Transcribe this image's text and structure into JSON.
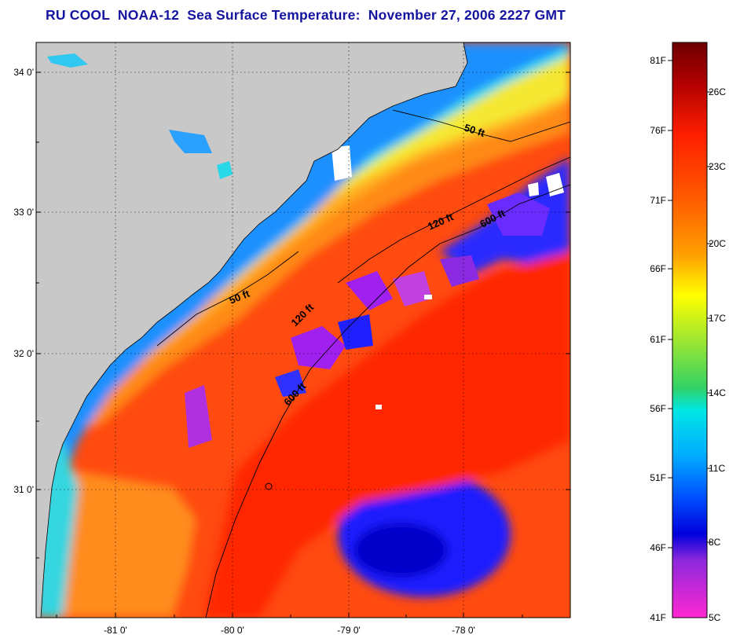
{
  "title": "RU COOL  NOAA-12  Sea Surface Temperature:  November 27, 2006 2227 GMT",
  "map": {
    "lat_labels": [
      "34 0'",
      "33 0'",
      "32 0'",
      "31 0'"
    ],
    "lon_labels": [
      "-81 0'",
      "-80 0'",
      "-79 0'",
      "-78 0'"
    ],
    "contours": [
      {
        "label": "50 ft"
      },
      {
        "label": "50 ft"
      },
      {
        "label": "120 ft"
      },
      {
        "label": "120 ft"
      },
      {
        "label": "600 ft"
      },
      {
        "label": "600 ft"
      }
    ]
  },
  "colorbar": {
    "fahrenheit": [
      "81F",
      "76F",
      "71F",
      "66F",
      "61F",
      "56F",
      "51F",
      "46F",
      "41F"
    ],
    "celsius": [
      "26C",
      "23C",
      "20C",
      "17C",
      "14C",
      "11C",
      "8C",
      "5C"
    ]
  },
  "colors": {
    "land": "#c8c8c8",
    "title": "#1414a0",
    "cloud": "#ffffff"
  }
}
